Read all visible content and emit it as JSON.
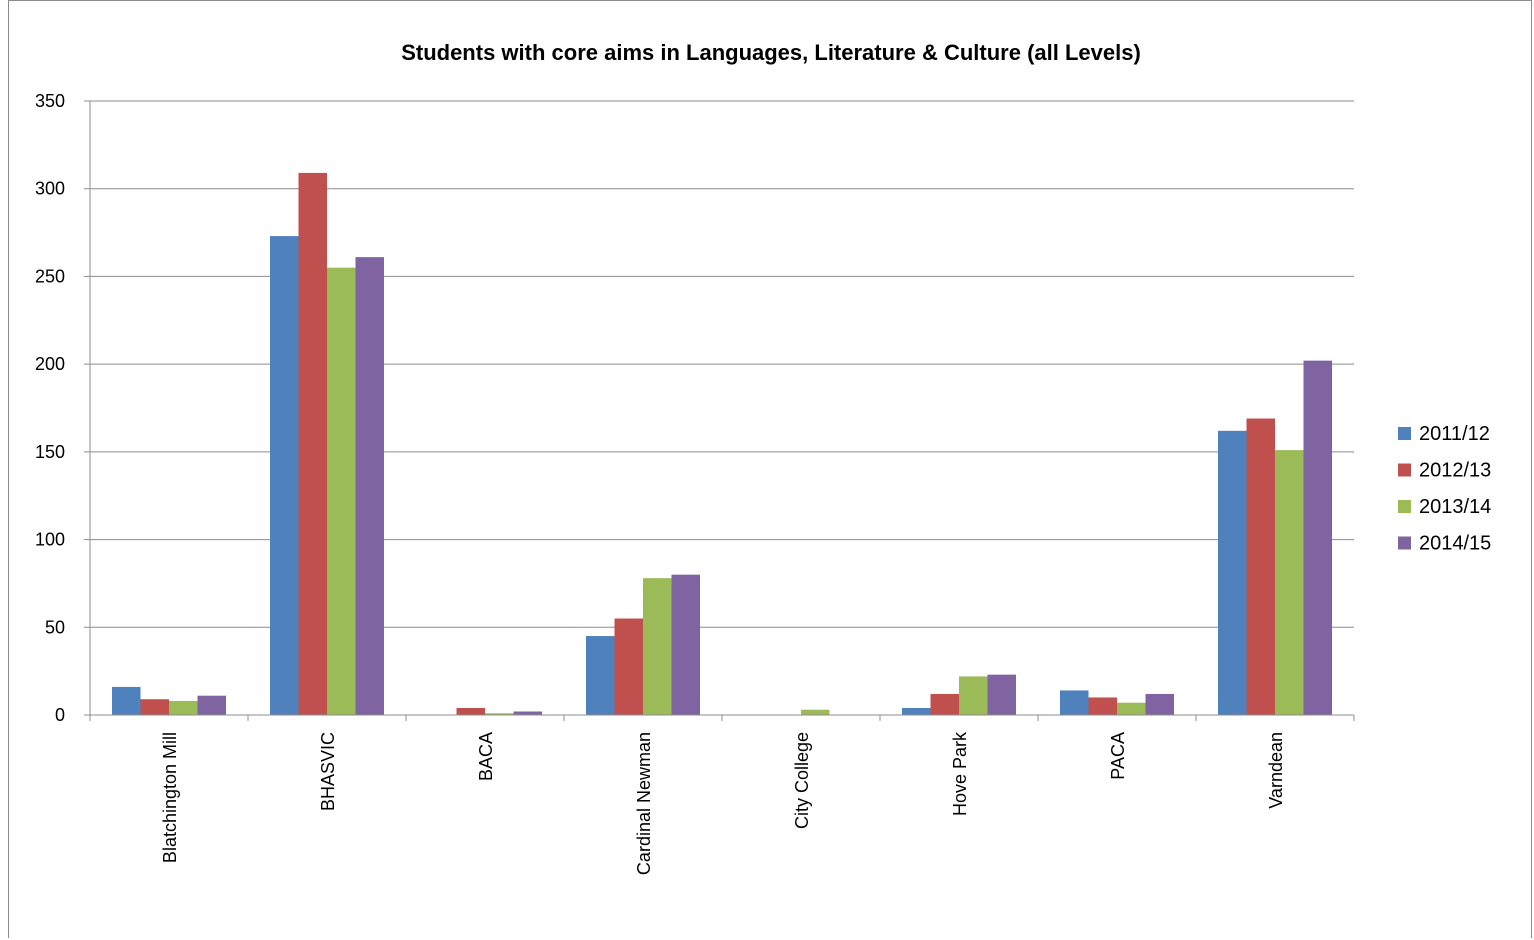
{
  "chart_data": {
    "type": "bar",
    "title": "Students with core aims in Languages, Literature & Culture (all Levels)",
    "xlabel": "",
    "ylabel": "",
    "ylim": [
      0,
      350
    ],
    "yticks": [
      0,
      50,
      100,
      150,
      200,
      250,
      300,
      350
    ],
    "grid": true,
    "legend_position": "right",
    "categories": [
      "Blatchington Mill",
      "BHASVIC",
      "BACA",
      "Cardinal Newman",
      "City College",
      "Hove Park",
      "PACA",
      "Varndean"
    ],
    "series": [
      {
        "name": "2011/12",
        "color": "#4f81bd",
        "values": [
          16,
          273,
          0,
          45,
          0,
          4,
          14,
          162
        ]
      },
      {
        "name": "2012/13",
        "color": "#c0504d",
        "values": [
          9,
          309,
          4,
          55,
          0,
          12,
          10,
          169
        ]
      },
      {
        "name": "2013/14",
        "color": "#9bbb59",
        "values": [
          8,
          255,
          1,
          78,
          3,
          22,
          7,
          151
        ]
      },
      {
        "name": "2014/15",
        "color": "#8064a2",
        "values": [
          11,
          261,
          2,
          80,
          0,
          23,
          12,
          202
        ]
      }
    ]
  }
}
